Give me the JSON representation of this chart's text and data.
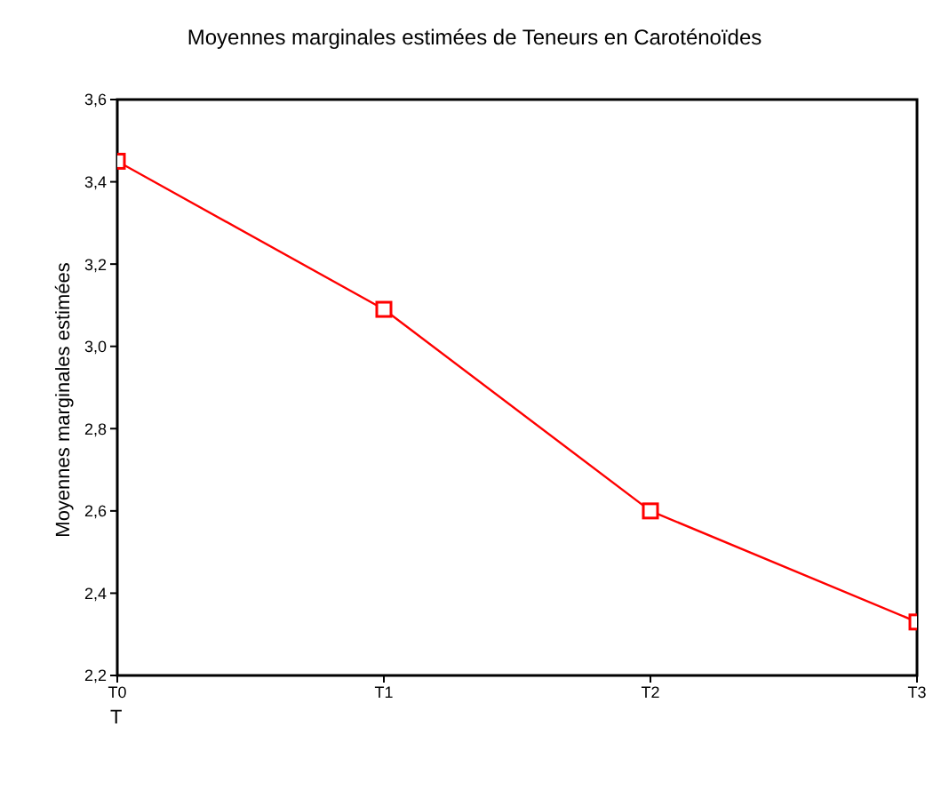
{
  "chart_data": {
    "type": "line",
    "title": "Moyennes marginales estimées de Teneurs en Caroténoïdes",
    "xlabel": "T",
    "ylabel": "Moyennes marginales estimées",
    "categories": [
      "T0",
      "T1",
      "T2",
      "T3"
    ],
    "series": [
      {
        "color": "#ff0000",
        "values": [
          3.45,
          3.09,
          2.6,
          2.33
        ]
      }
    ],
    "ylim": [
      2.2,
      3.6
    ],
    "yticks": [
      {
        "value": 2.2,
        "label": "2,2"
      },
      {
        "value": 2.4,
        "label": "2,4"
      },
      {
        "value": 2.6,
        "label": "2,6"
      },
      {
        "value": 2.8,
        "label": "2,8"
      },
      {
        "value": 3.0,
        "label": "3,0"
      },
      {
        "value": 3.2,
        "label": "3,2"
      },
      {
        "value": 3.4,
        "label": "3,4"
      },
      {
        "value": 3.6,
        "label": "3,6"
      }
    ],
    "grid": false,
    "legend": false,
    "marker": "square",
    "line_style": "solid"
  }
}
